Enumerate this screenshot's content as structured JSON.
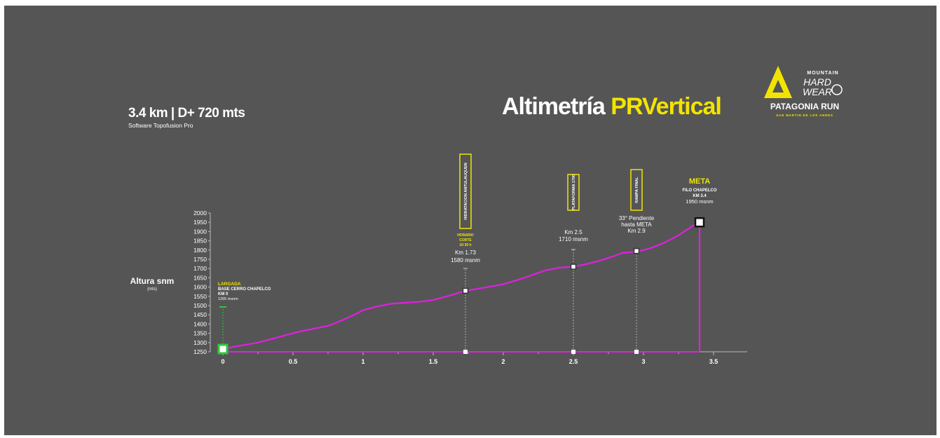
{
  "header": {
    "summary": "3.4 km | D+ 720 mts",
    "software": "Software Topofusion Pro",
    "title_main": "Altimetría ",
    "title_accent": "PRVertical"
  },
  "logo": {
    "line1": "MOUNTAIN",
    "line2": "HARD",
    "line3": "WEAR",
    "brand": "PATAGONIA RUN",
    "location": "SAN MARTIN DE LOS ANDES",
    "icon": "mountain-triangle-icon"
  },
  "colors": {
    "background": "#555555",
    "profile": "#e020e0",
    "accent": "#f2e400",
    "start": "#2ec83c",
    "text": "#ffffff"
  },
  "chart_data": {
    "type": "line",
    "title": "",
    "xlabel": "",
    "ylabel": "Altura snm",
    "ylabel_unit": "(mts)",
    "xlim": [
      0,
      3.6
    ],
    "ylim": [
      1250,
      2000
    ],
    "x_ticks": [
      "0",
      "0.5",
      "1",
      "1.5",
      "2",
      "2.5",
      "3",
      "3.5"
    ],
    "y_ticks": [
      "1250",
      "1300",
      "1350",
      "1400",
      "1450",
      "1500",
      "1550",
      "1600",
      "1650",
      "1700",
      "1750",
      "1800",
      "1850",
      "1900",
      "1950",
      "2000"
    ],
    "series": [
      {
        "x": [
          0,
          0.1,
          0.25,
          0.35,
          0.45,
          0.55,
          0.65,
          0.75,
          0.85,
          0.95,
          1.0,
          1.1,
          1.2,
          1.3,
          1.4,
          1.5,
          1.6,
          1.73,
          1.85,
          2.0,
          2.15,
          2.3,
          2.4,
          2.5,
          2.6,
          2.7,
          2.8,
          2.85,
          2.95,
          3.05,
          3.15,
          3.25,
          3.35,
          3.4
        ],
        "y": [
          1265,
          1280,
          1300,
          1320,
          1340,
          1360,
          1375,
          1390,
          1420,
          1455,
          1475,
          1495,
          1510,
          1515,
          1520,
          1530,
          1550,
          1580,
          1595,
          1615,
          1650,
          1690,
          1705,
          1710,
          1725,
          1745,
          1770,
          1785,
          1790,
          1810,
          1840,
          1880,
          1930,
          1950
        ]
      }
    ],
    "start_marker": {
      "label": "LARGADA",
      "line1": "BASE CERRO CHAPELCO",
      "line2": "KM 0",
      "line3": "1265 msnm",
      "x": 0,
      "y": 1265
    },
    "points": [
      {
        "banner": "HIDRATACION ANTULAUQUEN",
        "sub_label": "HORARIO CORTE 10:30 h",
        "info1": "Km 1.73",
        "info2": "1580 msnm",
        "x": 1.73,
        "y": 1580
      },
      {
        "banner": "PLATAFORMA 1700",
        "info1": "Km 2.5",
        "info2": "1710 msnm",
        "x": 2.5,
        "y": 1710
      },
      {
        "banner": "RAMPA FINAL",
        "info1": "33° Pendiente",
        "info2": "hasta META",
        "info3": "Km 2.9",
        "x": 2.95,
        "y": 1795
      }
    ],
    "finish_marker": {
      "label": "META",
      "line1": "FILO CHAPELCO",
      "line2": "KM 3.4",
      "line3": "1950 msnm",
      "x": 3.4,
      "y": 1950
    },
    "grid": false,
    "legend": "none"
  }
}
